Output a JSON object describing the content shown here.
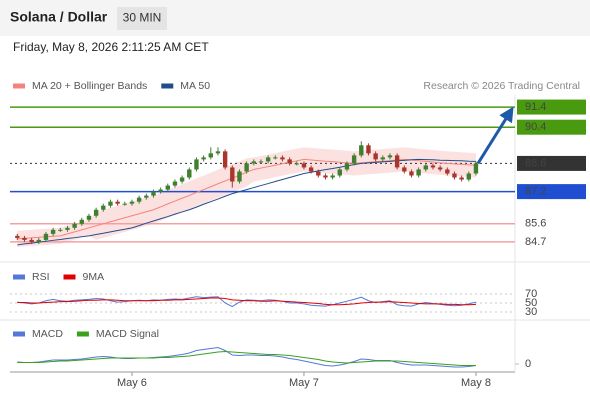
{
  "header": {
    "title": "Solana / Dollar",
    "timeframe": "30 MIN",
    "datetime": "Friday, May 8, 2026 2:11:25 AM CET"
  },
  "chart_data": [
    {
      "type": "candlestick",
      "attribution": "Research © 2026 Trading Central",
      "categories": [
        null,
        null,
        null,
        null,
        null,
        null,
        null,
        null,
        null,
        null,
        null,
        null,
        null,
        null,
        null,
        null,
        "May 6",
        null,
        null,
        null,
        null,
        null,
        null,
        null,
        null,
        null,
        null,
        null,
        null,
        null,
        null,
        null,
        null,
        null,
        null,
        null,
        null,
        null,
        null,
        null,
        "May 7",
        null,
        null,
        null,
        null,
        null,
        null,
        null,
        null,
        null,
        null,
        null,
        null,
        null,
        null,
        null,
        null,
        null,
        null,
        null,
        null,
        null,
        null,
        null,
        "May 8"
      ],
      "open": [
        85.0,
        84.9,
        84.8,
        84.7,
        84.8,
        85.1,
        85.3,
        85.3,
        85.4,
        85.6,
        85.8,
        86.0,
        86.3,
        86.5,
        86.7,
        86.6,
        86.6,
        86.7,
        86.9,
        87.0,
        87.2,
        87.3,
        87.5,
        87.7,
        87.9,
        88.3,
        88.8,
        88.9,
        89.1,
        89.2,
        88.4,
        87.7,
        88.2,
        88.6,
        88.7,
        88.7,
        88.9,
        88.9,
        88.8,
        88.6,
        88.6,
        88.4,
        88.2,
        88.0,
        87.9,
        88.0,
        88.3,
        88.6,
        89.0,
        89.5,
        89.1,
        88.8,
        88.9,
        89.0,
        88.4,
        88.2,
        88.0,
        88.3,
        88.5,
        88.4,
        88.3,
        88.1,
        87.9,
        87.8,
        88.1
      ],
      "high": [
        85.1,
        85.0,
        84.9,
        84.9,
        85.2,
        85.4,
        85.4,
        85.5,
        85.7,
        85.9,
        86.1,
        86.4,
        86.6,
        86.8,
        86.8,
        86.7,
        86.8,
        87.0,
        87.1,
        87.3,
        87.4,
        87.6,
        87.8,
        88.0,
        88.4,
        88.9,
        89.0,
        89.4,
        89.4,
        89.3,
        88.5,
        88.3,
        88.7,
        88.8,
        88.8,
        89.0,
        89.0,
        89.0,
        88.9,
        88.7,
        88.7,
        88.5,
        88.3,
        88.1,
        88.1,
        88.4,
        88.7,
        89.1,
        89.7,
        89.6,
        89.2,
        89.0,
        89.1,
        89.1,
        88.5,
        88.3,
        88.4,
        88.6,
        88.6,
        88.5,
        88.4,
        88.2,
        88.0,
        88.2,
        88.7
      ],
      "low": [
        84.8,
        84.7,
        84.6,
        84.6,
        84.7,
        85.0,
        85.2,
        85.2,
        85.3,
        85.5,
        85.7,
        85.9,
        86.2,
        86.4,
        86.5,
        86.5,
        86.5,
        86.6,
        86.8,
        86.9,
        87.1,
        87.2,
        87.4,
        87.6,
        87.8,
        88.2,
        88.7,
        88.8,
        89.0,
        88.3,
        87.4,
        87.6,
        88.1,
        88.5,
        88.6,
        88.6,
        88.8,
        88.7,
        88.5,
        88.5,
        88.3,
        88.1,
        87.9,
        87.8,
        87.8,
        87.9,
        88.2,
        88.5,
        88.9,
        89.0,
        88.7,
        88.7,
        88.8,
        88.3,
        88.1,
        87.9,
        87.9,
        88.2,
        88.3,
        88.2,
        88.0,
        87.8,
        87.7,
        87.7,
        88.0
      ],
      "close": [
        84.9,
        84.8,
        84.7,
        84.8,
        85.1,
        85.3,
        85.3,
        85.4,
        85.6,
        85.8,
        86.0,
        86.3,
        86.5,
        86.7,
        86.6,
        86.6,
        86.7,
        86.9,
        87.0,
        87.2,
        87.3,
        87.5,
        87.7,
        87.9,
        88.3,
        88.8,
        88.9,
        89.1,
        89.2,
        88.4,
        87.7,
        88.2,
        88.6,
        88.7,
        88.7,
        88.9,
        88.9,
        88.8,
        88.6,
        88.6,
        88.4,
        88.2,
        88.0,
        87.9,
        88.0,
        88.3,
        88.6,
        89.0,
        89.5,
        89.1,
        88.8,
        88.9,
        89.0,
        88.4,
        88.2,
        88.0,
        88.3,
        88.5,
        88.4,
        88.3,
        88.1,
        87.9,
        87.8,
        88.1,
        88.6
      ],
      "up_color": "#3f7f2f",
      "down_color": "#a9362c",
      "series": [
        {
          "name": "MA 20 + Bollinger Bands",
          "color": "#f4837d",
          "band_color": "#fbd9d9",
          "values": [
            84.85,
            84.88,
            84.9,
            84.93,
            84.95,
            84.98,
            85.0,
            85.1,
            85.2,
            85.3,
            85.4,
            85.5,
            85.6,
            85.7,
            85.8,
            85.9,
            86.0,
            86.1,
            86.2,
            86.3,
            86.44,
            86.59,
            86.73,
            86.87,
            87.01,
            87.16,
            87.3,
            87.44,
            87.59,
            87.73,
            87.87,
            88.01,
            88.16,
            88.3,
            88.37,
            88.44,
            88.51,
            88.59,
            88.66,
            88.73,
            88.8,
            88.77,
            88.74,
            88.71,
            88.69,
            88.66,
            88.63,
            88.6,
            88.63,
            88.66,
            88.69,
            88.71,
            88.74,
            88.77,
            88.8,
            88.77,
            88.73,
            88.7,
            88.67,
            88.63,
            88.6,
            88.58,
            88.55,
            88.53,
            88.5
          ],
          "upper": [
            85.25,
            85.28,
            85.3,
            85.33,
            85.35,
            85.38,
            85.4,
            85.5,
            85.6,
            85.7,
            85.8,
            86.2,
            86.3,
            86.4,
            86.5,
            86.6,
            86.7,
            86.8,
            86.9,
            87.0,
            87.14,
            87.29,
            87.43,
            87.57,
            87.71,
            87.86,
            88.0,
            88.14,
            88.29,
            88.43,
            88.57,
            88.71,
            88.86,
            88.9,
            88.97,
            89.04,
            89.11,
            89.19,
            89.26,
            89.33,
            89.4,
            89.37,
            89.34,
            89.31,
            89.29,
            89.26,
            89.23,
            89.2,
            89.23,
            89.26,
            89.29,
            89.31,
            89.34,
            89.37,
            89.4,
            89.37,
            89.33,
            89.3,
            89.27,
            89.23,
            89.2,
            89.18,
            89.15,
            89.13,
            89.1
          ],
          "lower": [
            84.45,
            84.48,
            84.5,
            84.53,
            84.55,
            84.58,
            84.6,
            84.7,
            84.8,
            84.9,
            85.0,
            84.8,
            84.9,
            85.0,
            85.1,
            85.2,
            85.3,
            85.4,
            85.5,
            85.6,
            85.74,
            85.89,
            86.03,
            86.17,
            86.31,
            86.46,
            86.6,
            86.74,
            86.89,
            87.03,
            87.17,
            87.31,
            87.46,
            87.7,
            87.77,
            87.84,
            87.91,
            87.99,
            88.06,
            88.13,
            88.2,
            88.17,
            88.14,
            88.11,
            88.09,
            88.06,
            88.03,
            88.0,
            88.03,
            88.06,
            88.09,
            88.11,
            88.14,
            88.17,
            88.2,
            88.17,
            88.13,
            88.1,
            88.07,
            88.03,
            88.0,
            87.98,
            87.95,
            87.93,
            87.9
          ]
        },
        {
          "name": "MA 50",
          "color": "#1f4e8c",
          "values": [
            84.55,
            84.6,
            84.64,
            84.69,
            84.73,
            84.78,
            84.82,
            84.87,
            84.91,
            84.96,
            85.0,
            85.07,
            85.13,
            85.2,
            85.27,
            85.33,
            85.4,
            85.51,
            85.63,
            85.74,
            85.85,
            85.96,
            86.08,
            86.19,
            86.3,
            86.43,
            86.57,
            86.7,
            86.83,
            86.97,
            87.1,
            87.2,
            87.3,
            87.4,
            87.5,
            87.6,
            87.7,
            87.8,
            87.9,
            88.0,
            88.1,
            88.16,
            88.23,
            88.29,
            88.35,
            88.41,
            88.48,
            88.54,
            88.6,
            88.63,
            88.65,
            88.68,
            88.7,
            88.73,
            88.75,
            88.78,
            88.8,
            88.79,
            88.78,
            88.76,
            88.75,
            88.74,
            88.73,
            88.71,
            88.7
          ]
        }
      ],
      "levels": [
        {
          "value": 91.4,
          "color": "#4a9a10",
          "line": "solid",
          "style": "box"
        },
        {
          "value": 90.4,
          "color": "#4a9a10",
          "line": "solid",
          "style": "box"
        },
        {
          "value": 88.6,
          "color": "#333333",
          "line": "dotted",
          "style": "box"
        },
        {
          "value": 87.2,
          "color": "#1f4fd0",
          "line": "solid",
          "style": "box"
        },
        {
          "value": 85.6,
          "color": "#e8191c",
          "line": "solid",
          "style": "text"
        },
        {
          "value": 84.7,
          "color": "#e8191c",
          "line": "solid",
          "style": "text"
        }
      ],
      "arrow_color": "#1f5aa6",
      "ylim": [
        84.05,
        92.0
      ]
    },
    {
      "type": "line",
      "series": [
        {
          "name": "RSI",
          "color": "#5577d8",
          "values": [
            52,
            50,
            48,
            50,
            55,
            58,
            55,
            54,
            56,
            57,
            58,
            60,
            59,
            55,
            52,
            53,
            55,
            56,
            55,
            57,
            56,
            58,
            59,
            58,
            61,
            64,
            62,
            63,
            64,
            50,
            42,
            52,
            57,
            56,
            55,
            57,
            56,
            54,
            50,
            50,
            48,
            45,
            44,
            43,
            46,
            50,
            54,
            58,
            63,
            55,
            51,
            53,
            55,
            46,
            44,
            43,
            48,
            51,
            49,
            47,
            45,
            44,
            45,
            48,
            52
          ]
        },
        {
          "name": "9MA",
          "color": "#e00000",
          "values": [
            51,
            51,
            50,
            50,
            51,
            52,
            53,
            53,
            54,
            55,
            56,
            56,
            57,
            57,
            56,
            55,
            55,
            55,
            55,
            55,
            56,
            56,
            57,
            57,
            58,
            59,
            60,
            61,
            61,
            60,
            57,
            56,
            55,
            55,
            54,
            54,
            55,
            54,
            53,
            52,
            51,
            50,
            49,
            47,
            46,
            46,
            47,
            48,
            50,
            51,
            52,
            52,
            53,
            52,
            51,
            50,
            49,
            48,
            48,
            48,
            47,
            47,
            46,
            46,
            47
          ]
        }
      ],
      "ylim": [
        25,
        80
      ],
      "yticks": [
        30,
        50,
        70
      ],
      "grid": true
    },
    {
      "type": "line",
      "series": [
        {
          "name": "MACD",
          "color": "#5577d8",
          "values": [
            0.04,
            0.03,
            0.03,
            0.04,
            0.06,
            0.08,
            0.08,
            0.08,
            0.09,
            0.1,
            0.12,
            0.14,
            0.15,
            0.14,
            0.12,
            0.11,
            0.11,
            0.12,
            0.12,
            0.13,
            0.14,
            0.15,
            0.17,
            0.19,
            0.22,
            0.27,
            0.29,
            0.31,
            0.33,
            0.27,
            0.18,
            0.17,
            0.18,
            0.18,
            0.17,
            0.17,
            0.16,
            0.14,
            0.11,
            0.09,
            0.06,
            0.03,
            0.0,
            -0.03,
            -0.04,
            -0.02,
            0.01,
            0.05,
            0.1,
            0.09,
            0.07,
            0.07,
            0.07,
            0.03,
            0.0,
            -0.02,
            -0.02,
            -0.02,
            -0.03,
            -0.04,
            -0.05,
            -0.06,
            -0.06,
            -0.05,
            -0.03
          ]
        },
        {
          "name": "MACD Signal",
          "color": "#3aa01e",
          "values": [
            0.03,
            0.03,
            0.03,
            0.03,
            0.04,
            0.05,
            0.06,
            0.06,
            0.07,
            0.08,
            0.09,
            0.1,
            0.11,
            0.12,
            0.12,
            0.12,
            0.12,
            0.12,
            0.12,
            0.12,
            0.13,
            0.13,
            0.14,
            0.15,
            0.16,
            0.18,
            0.2,
            0.22,
            0.24,
            0.25,
            0.24,
            0.23,
            0.22,
            0.21,
            0.2,
            0.19,
            0.19,
            0.18,
            0.17,
            0.15,
            0.13,
            0.11,
            0.09,
            0.06,
            0.04,
            0.03,
            0.02,
            0.03,
            0.04,
            0.05,
            0.06,
            0.06,
            0.06,
            0.06,
            0.05,
            0.04,
            0.03,
            0.02,
            0.01,
            0.0,
            -0.01,
            -0.02,
            -0.03,
            -0.03,
            -0.03
          ]
        }
      ],
      "ylim": [
        -0.16,
        0.48
      ],
      "yticks": [
        0
      ],
      "grid": false
    }
  ]
}
